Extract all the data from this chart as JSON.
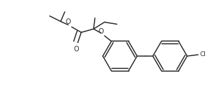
{
  "background": "#ffffff",
  "line_color": "#2a2a2a",
  "line_width": 1.1,
  "fig_width": 3.02,
  "fig_height": 1.55,
  "dpi": 100,
  "xlim": [
    0,
    302
  ],
  "ylim": [
    0,
    155
  ]
}
